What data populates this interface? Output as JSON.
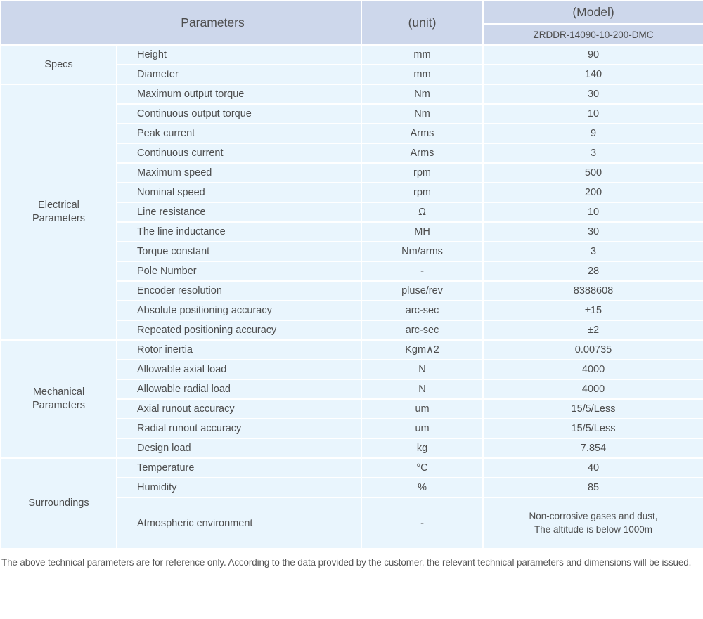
{
  "colors": {
    "header_bg": "#cdd7eb",
    "row_bg": "#e9f5fd",
    "text": "#4d4d4d"
  },
  "header": {
    "parameters_label": "Parameters",
    "unit_label": "(unit)",
    "model_label": "(Model)",
    "model_value": "ZRDDR-14090-10-200-DMC"
  },
  "groups": [
    {
      "label": "Specs",
      "rows": [
        {
          "name": "Height",
          "unit": "mm",
          "value": "90"
        },
        {
          "name": "Diameter",
          "unit": "mm",
          "value": "140"
        }
      ]
    },
    {
      "label": "Electrical\nParameters",
      "rows": [
        {
          "name": "Maximum output torque",
          "unit": "Nm",
          "value": "30"
        },
        {
          "name": "Continuous output torque",
          "unit": "Nm",
          "value": "10"
        },
        {
          "name": "Peak current",
          "unit": "Arms",
          "value": "9"
        },
        {
          "name": "Continuous current",
          "unit": "Arms",
          "value": "3"
        },
        {
          "name": "Maximum speed",
          "unit": "rpm",
          "value": "500"
        },
        {
          "name": "Nominal speed",
          "unit": "rpm",
          "value": "200"
        },
        {
          "name": "Line resistance",
          "unit": "Ω",
          "value": "10"
        },
        {
          "name": "The line inductance",
          "unit": "MH",
          "value": "30"
        },
        {
          "name": "Torque constant",
          "unit": "Nm/arms",
          "value": "3"
        },
        {
          "name": "Pole Number",
          "unit": "-",
          "value": "28"
        },
        {
          "name": "Encoder resolution",
          "unit": "pluse/rev",
          "value": "8388608"
        },
        {
          "name": "Absolute positioning accuracy",
          "unit": "arc-sec",
          "value": "±15"
        },
        {
          "name": "Repeated positioning accuracy",
          "unit": "arc-sec",
          "value": "±2"
        }
      ]
    },
    {
      "label": "Mechanical\nParameters",
      "rows": [
        {
          "name": "Rotor inertia",
          "unit": "Kgm∧2",
          "value": "0.00735"
        },
        {
          "name": "Allowable axial load",
          "unit": "N",
          "value": "4000"
        },
        {
          "name": "Allowable radial load",
          "unit": "N",
          "value": "4000"
        },
        {
          "name": "Axial runout accuracy",
          "unit": "um",
          "value": "15/5/Less"
        },
        {
          "name": "Radial runout accuracy",
          "unit": "um",
          "value": "15/5/Less"
        },
        {
          "name": "Design load",
          "unit": "kg",
          "value": "7.854"
        }
      ]
    },
    {
      "label": "Surroundings",
      "rows": [
        {
          "name": "Temperature",
          "unit": "°C",
          "value": "40"
        },
        {
          "name": "Humidity",
          "unit": "%",
          "value": "85"
        },
        {
          "name": "Atmospheric environment",
          "unit": "-",
          "value": "Non-corrosive gases and dust,\nThe altitude is below 1000m"
        }
      ]
    }
  ],
  "footer": {
    "note": "The above technical parameters are for reference only. According to the data provided by the customer, the relevant technical parameters and dimensions will be issued."
  }
}
